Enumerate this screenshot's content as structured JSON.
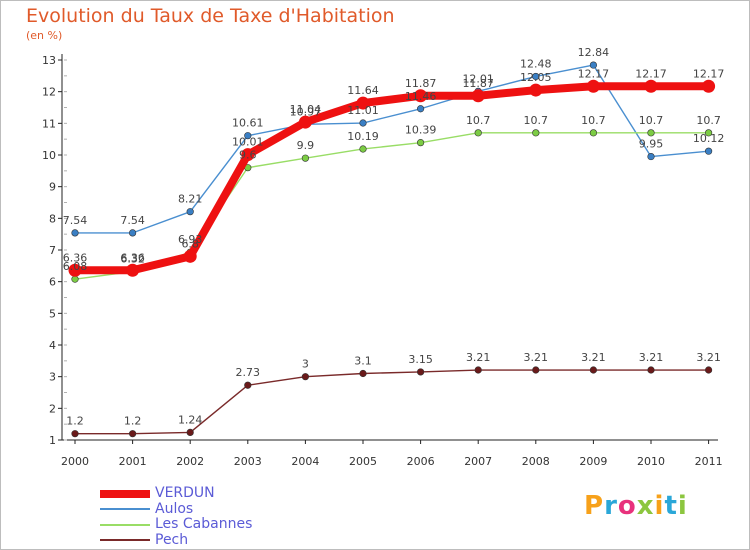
{
  "chart_data": {
    "type": "line",
    "title": "Evolution du Taux de Taxe d'Habitation",
    "subtitle": "(en %)",
    "x": [
      "2000",
      "2001",
      "2002",
      "2003",
      "2004",
      "2005",
      "2006",
      "2007",
      "2008",
      "2009",
      "2010",
      "2011"
    ],
    "ylim": [
      1,
      13
    ],
    "yticks": [
      1,
      2,
      3,
      4,
      5,
      6,
      7,
      8,
      9,
      10,
      11,
      12,
      13
    ],
    "grid": false,
    "legend": "bottom-left",
    "series": [
      {
        "name": "Aulos",
        "color": "#4a8fd0",
        "marker": "#3a7fc4",
        "values": [
          7.54,
          7.54,
          8.21,
          10.61,
          10.97,
          11.01,
          11.46,
          12.01,
          12.48,
          12.84,
          9.95,
          10.12
        ],
        "labels": [
          "7.54",
          "7.54",
          "8.21",
          "10.61",
          "10.97",
          "11.01",
          "11.46",
          "12.01",
          "12.48",
          "12.84",
          "9.95",
          "10.12"
        ]
      },
      {
        "name": "Les Cabannes",
        "color": "#99dd66",
        "marker": "#7ccc44",
        "values": [
          6.08,
          6.32,
          6.93,
          9.6,
          9.9,
          10.19,
          10.39,
          10.7,
          10.7,
          10.7,
          10.7,
          10.7
        ],
        "labels": [
          "6.08",
          "6.32",
          "6.93",
          "9.6",
          "9.9",
          "10.19",
          "10.39",
          "10.7",
          "10.7",
          "10.7",
          "10.7",
          "10.7"
        ]
      },
      {
        "name": "Pech",
        "color": "#7a2a2a",
        "marker": "#6a1a1a",
        "values": [
          1.2,
          1.2,
          1.24,
          2.73,
          3,
          3.1,
          3.15,
          3.21,
          3.21,
          3.21,
          3.21,
          3.21
        ],
        "labels": [
          "1.2",
          "1.2",
          "1.24",
          "2.73",
          "3",
          "3.1",
          "3.15",
          "3.21",
          "3.21",
          "3.21",
          "3.21",
          "3.21"
        ]
      },
      {
        "name": "VERDUN",
        "color": "#ee1111",
        "marker": "#ee1111",
        "values": [
          6.36,
          6.36,
          6.8,
          10.01,
          11.04,
          11.64,
          11.87,
          11.87,
          12.05,
          12.17,
          12.17,
          12.17
        ],
        "labels": [
          "6.36",
          "6.36",
          "6.8",
          "10.01",
          "11.04",
          "11.64",
          "11.87",
          "11.87",
          "12.05",
          "12.17",
          "12.17",
          "12.17"
        ]
      }
    ]
  },
  "legend_items": [
    "VERDUN",
    "Aulos",
    "Les Cabannes",
    "Pech"
  ],
  "brand": {
    "letters": [
      "P",
      "r",
      "o",
      "x",
      "i",
      "t",
      "i"
    ],
    "colors": [
      "#f7a11a",
      "#2aa7d8",
      "#e8327c",
      "#8cc63f",
      "#f7a11a",
      "#2aa7d8",
      "#8cc63f"
    ]
  }
}
